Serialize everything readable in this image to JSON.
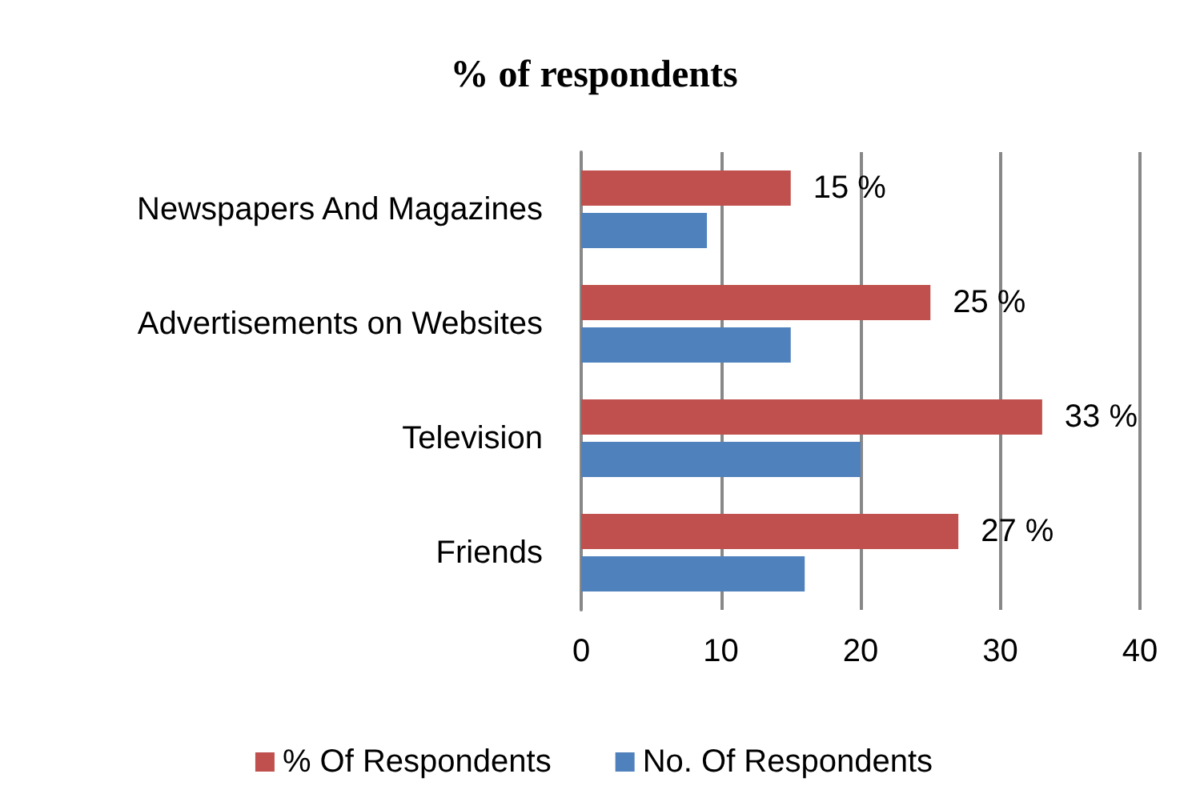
{
  "chart_data": {
    "type": "bar",
    "orientation": "horizontal",
    "title": "% of respondents",
    "categories": [
      "Newspapers And Magazines",
      "Advertisements on Websites",
      "Television",
      "Friends"
    ],
    "series": [
      {
        "name": "% Of Respondents",
        "color": "#c0504d",
        "values": [
          15,
          25,
          33,
          27
        ],
        "value_labels": [
          "15 %",
          "25 %",
          "33 %",
          "27 %"
        ]
      },
      {
        "name": "No. Of Respondents",
        "color": "#4f81bd",
        "values": [
          9,
          15,
          20,
          16
        ]
      }
    ],
    "xlim": [
      0,
      40
    ],
    "xticks": [
      0,
      10,
      20,
      30,
      40
    ],
    "grid": "x",
    "legend": "bottom"
  }
}
